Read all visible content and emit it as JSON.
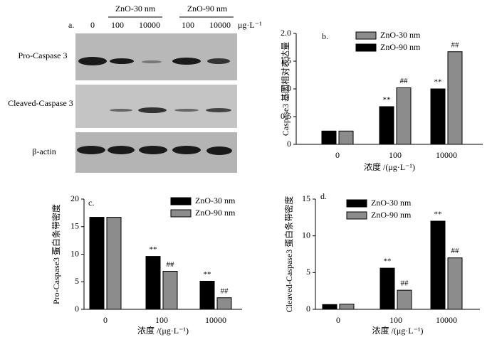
{
  "blot": {
    "panel": "a.",
    "control": "0",
    "group1": "ZnO-30 nm",
    "group2": "ZnO-90 nm",
    "doses": [
      "100",
      "10000",
      "100",
      "10000"
    ],
    "unit": "μg·L⁻¹",
    "rows": [
      "Pro-Caspase 3",
      "Cleaved-Caspase 3",
      "β-actin"
    ]
  },
  "chart_data": [
    {
      "type": "bar",
      "panel": "b.",
      "ylabel": "Caspase3 基因相对表达量",
      "xlabel": "浓度 /(μg·L⁻¹)",
      "categories": [
        "0",
        "100",
        "10000"
      ],
      "series": [
        {
          "name": "ZnO-30 nm",
          "color": "#8c8c8c",
          "values": [
            0.24,
            1.02,
            1.67
          ],
          "marks": [
            null,
            "##",
            "##"
          ]
        },
        {
          "name": "ZnO-90 nm",
          "color": "#000000",
          "values": [
            0.24,
            0.68,
            1.0
          ],
          "marks": [
            null,
            "**",
            "**"
          ]
        }
      ],
      "ylim": [
        0,
        2.0
      ],
      "yticks": [
        0,
        0.5,
        {
          "value": 1.0,
          "label": "1.0"
        },
        1.5,
        {
          "value": 2.0,
          "label": "2.0"
        }
      ]
    },
    {
      "type": "bar",
      "panel": "c.",
      "ylabel": "Pro-Caspase3 蛋白条带密度",
      "xlabel": "浓度 /(μg·L⁻¹)",
      "categories": [
        "0",
        "100",
        "10000"
      ],
      "series": [
        {
          "name": "ZnO-30 nm",
          "color": "#000000",
          "values": [
            16.7,
            9.6,
            5.1
          ],
          "marks": [
            null,
            "**",
            "**"
          ]
        },
        {
          "name": "ZnO-90 nm",
          "color": "#8c8c8c",
          "values": [
            16.7,
            6.9,
            2.1
          ],
          "marks": [
            null,
            "##",
            "##"
          ]
        }
      ],
      "ylim": [
        0,
        20
      ],
      "yticks": [
        0,
        5,
        10,
        15,
        20
      ]
    },
    {
      "type": "bar",
      "panel": "d.",
      "ylabel": "Cleaved-Caspase3 蛋白条带密度",
      "xlabel": "浓度 /(μg·L⁻¹)",
      "categories": [
        "0",
        "100",
        "10000"
      ],
      "series": [
        {
          "name": "ZnO-30 nm",
          "color": "#000000",
          "values": [
            0.65,
            5.6,
            12.0
          ],
          "marks": [
            null,
            "**",
            "**"
          ]
        },
        {
          "name": "ZnO-90 nm",
          "color": "#8c8c8c",
          "values": [
            0.7,
            2.6,
            7.0
          ],
          "marks": [
            null,
            "##",
            "##"
          ]
        }
      ],
      "ylim": [
        0,
        15
      ],
      "yticks": [
        0,
        5,
        10,
        15
      ]
    }
  ]
}
